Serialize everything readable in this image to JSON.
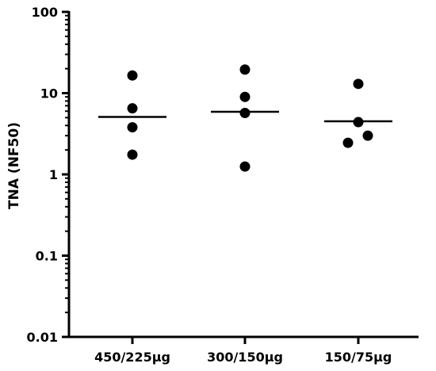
{
  "chart_data": {
    "type": "scatter",
    "ylabel": "TNA (NF50)",
    "xlabel": "",
    "yscale": "log",
    "ylim": [
      0.01,
      100
    ],
    "yticks": [
      {
        "value": 0.01,
        "label": "0.01"
      },
      {
        "value": 0.1,
        "label": "0.1"
      },
      {
        "value": 1,
        "label": "1"
      },
      {
        "value": 10,
        "label": "10"
      },
      {
        "value": 100,
        "label": "100"
      }
    ],
    "grid": false,
    "legend": "none",
    "point_color": "#000000",
    "groups": [
      {
        "label": "450/225µg",
        "points": [
          16.5,
          6.5,
          3.8,
          1.75
        ],
        "mean": 5.1
      },
      {
        "label": "300/150µg",
        "points": [
          19.5,
          9.0,
          5.7,
          1.25
        ],
        "mean": 5.9
      },
      {
        "label": "150/75µg",
        "points": [
          13.0,
          4.4,
          3.0,
          2.45
        ],
        "mean": 4.5
      }
    ]
  }
}
